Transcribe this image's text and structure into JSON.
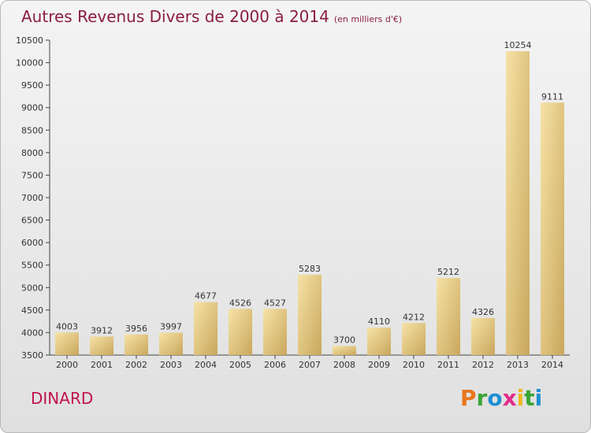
{
  "title": "Autres Revenus Divers de 2000 à 2014",
  "subtitle": "(en milliers d'€)",
  "city": "DINARD",
  "logo": {
    "letters": [
      "P",
      "r",
      "o",
      "x",
      "i",
      "t",
      "i"
    ],
    "colors": [
      "#e8761c",
      "#3aa535",
      "#1f8ed2",
      "#e22b8a",
      "#f2b71f",
      "#3aa535",
      "#1f8ed2"
    ]
  },
  "colors": {
    "bar_light": "#f6e2a6",
    "bar_dark": "#c9a75c",
    "title": "#8a1e3e",
    "city": "#c0134e"
  },
  "chart_data": {
    "type": "bar",
    "title": "Autres Revenus Divers de 2000 à 2014",
    "subtitle": "(en milliers d'€)",
    "categories": [
      "2000",
      "2001",
      "2002",
      "2003",
      "2004",
      "2005",
      "2006",
      "2007",
      "2008",
      "2009",
      "2010",
      "2011",
      "2012",
      "2013",
      "2014"
    ],
    "values": [
      4003,
      3912,
      3956,
      3997,
      4677,
      4526,
      4527,
      5283,
      3700,
      4110,
      4212,
      5212,
      4326,
      10254,
      9111
    ],
    "ylim": [
      3500,
      10500
    ],
    "yticks": [
      3500,
      4000,
      4500,
      5000,
      5500,
      6000,
      6500,
      7000,
      7500,
      8000,
      8500,
      9000,
      9500,
      10000,
      10500
    ],
    "grid": false,
    "legend": "none"
  }
}
